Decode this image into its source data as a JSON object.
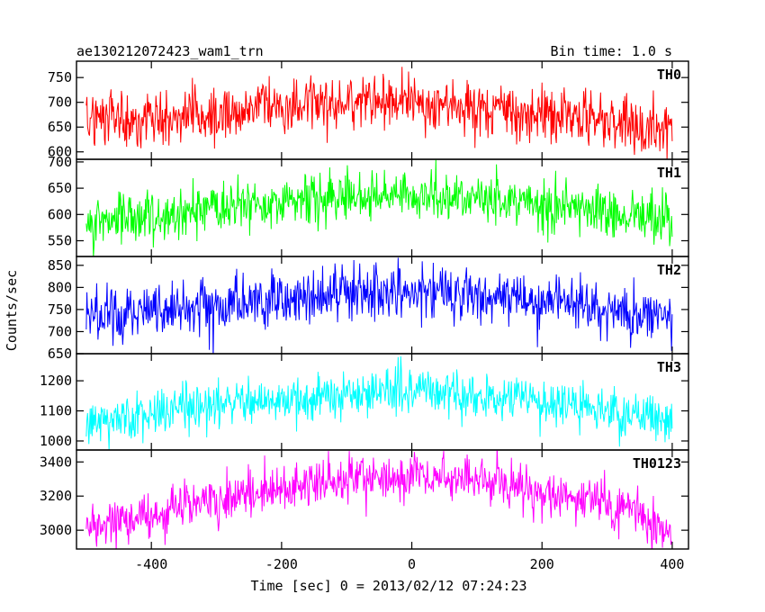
{
  "title_left": "ae130212072423_wam1_trn",
  "title_right": "Bin time: 1.0 s",
  "chart_data": {
    "type": "line",
    "xlabel": "Time [sec] 0 = 2013/02/12 07:24:23",
    "ylabel": "Counts/sec",
    "xlim": [
      -515,
      425
    ],
    "x_ticks": [
      -400,
      -200,
      0,
      200,
      400
    ],
    "x_range_data": [
      -500,
      400
    ],
    "bin_time_s": 1.0,
    "panels": [
      {
        "name": "TH0",
        "color": "#ff0000",
        "ylim": [
          585,
          783
        ],
        "y_ticks": [
          600,
          650,
          700,
          750
        ],
        "trend": [
          [
            -500,
            660
          ],
          [
            -300,
            678
          ],
          [
            -100,
            702
          ],
          [
            0,
            705
          ],
          [
            100,
            688
          ],
          [
            300,
            665
          ],
          [
            400,
            640
          ]
        ],
        "noise_sd": 28
      },
      {
        "name": "TH1",
        "color": "#00ff00",
        "ylim": [
          520,
          705
        ],
        "y_ticks": [
          550,
          600,
          650,
          700
        ],
        "trend": [
          [
            -500,
            580
          ],
          [
            -300,
            610
          ],
          [
            -100,
            630
          ],
          [
            0,
            640
          ],
          [
            100,
            632
          ],
          [
            300,
            605
          ],
          [
            400,
            588
          ]
        ],
        "noise_sd": 24
      },
      {
        "name": "TH2",
        "color": "#0000ff",
        "ylim": [
          650,
          870
        ],
        "y_ticks": [
          650,
          700,
          750,
          800,
          850
        ],
        "trend": [
          [
            -500,
            725
          ],
          [
            -300,
            760
          ],
          [
            -100,
            790
          ],
          [
            0,
            795
          ],
          [
            100,
            780
          ],
          [
            300,
            750
          ],
          [
            400,
            730
          ]
        ],
        "noise_sd": 30
      },
      {
        "name": "TH3",
        "color": "#00ffff",
        "ylim": [
          970,
          1290
        ],
        "y_ticks": [
          1000,
          1100,
          1200
        ],
        "trend": [
          [
            -500,
            1060
          ],
          [
            -300,
            1120
          ],
          [
            -100,
            1155
          ],
          [
            0,
            1165
          ],
          [
            100,
            1150
          ],
          [
            300,
            1100
          ],
          [
            400,
            1055
          ]
        ],
        "noise_sd": 38
      },
      {
        "name": "TH0123",
        "color": "#ff00ff",
        "ylim": [
          2890,
          3470
        ],
        "y_ticks": [
          3000,
          3200,
          3400
        ],
        "trend": [
          [
            -500,
            3010
          ],
          [
            -300,
            3180
          ],
          [
            -100,
            3300
          ],
          [
            0,
            3320
          ],
          [
            100,
            3290
          ],
          [
            300,
            3160
          ],
          [
            400,
            2990
          ]
        ],
        "noise_sd": 70
      }
    ]
  }
}
